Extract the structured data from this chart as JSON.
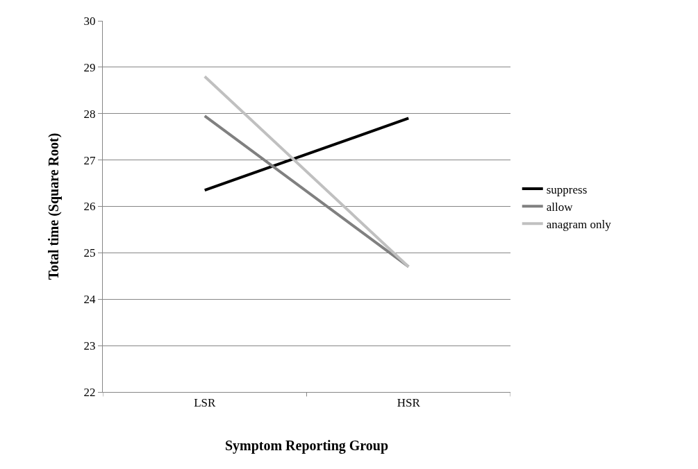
{
  "chart_data": {
    "type": "line",
    "xlabel": "Symptom Reporting Group",
    "ylabel": "Total time (Square Root)",
    "categories": [
      "LSR",
      "HSR"
    ],
    "series": [
      {
        "name": "suppress",
        "color": "#000000",
        "values": [
          26.35,
          27.9
        ]
      },
      {
        "name": "allow",
        "color": "#808080",
        "values": [
          27.95,
          24.7
        ]
      },
      {
        "name": "anagram only",
        "color": "#c0c0c0",
        "values": [
          28.8,
          24.7
        ]
      }
    ],
    "ylim": [
      22,
      30
    ],
    "yticks": [
      22,
      23,
      24,
      25,
      26,
      27,
      28,
      29,
      30
    ],
    "grid": "y",
    "legend": "right",
    "marker": "none",
    "line_style": "solid"
  }
}
